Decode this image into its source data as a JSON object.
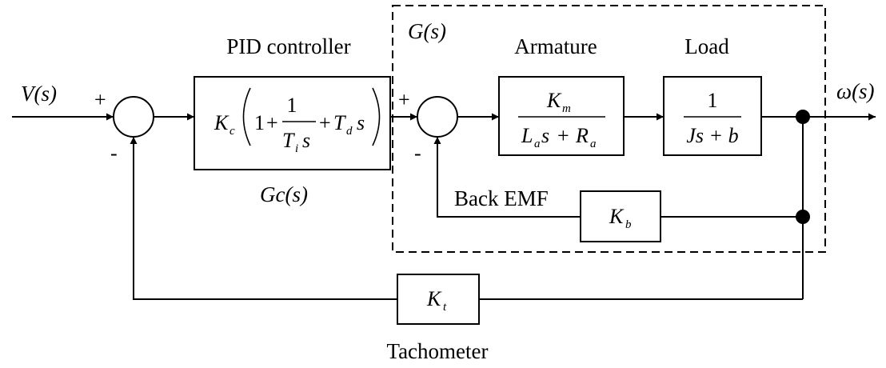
{
  "labels": {
    "pid_controller": "PID controller",
    "g_s": "G(s)",
    "armature": "Armature",
    "load": "Load",
    "v_s": "V(s)",
    "omega_s": "ω(s)",
    "gc_s": "Gc(s)",
    "back_emf": "Back EMF",
    "tachometer": "Tachometer"
  },
  "signs": {
    "sum1_plus": "+",
    "sum1_minus": "-",
    "sum2_plus": "+",
    "sum2_minus": "-"
  },
  "blocks": {
    "pid": {
      "Kc": "K",
      "Kc_sub": "c",
      "one": "1",
      "plus": "+",
      "frac_num": "1",
      "Ti": "T",
      "Ti_sub": "i",
      "Ti_s": "s",
      "Td": "T",
      "Td_sub": "d",
      "Td_s": "s"
    },
    "armature": {
      "num": "K",
      "num_sub": "m",
      "La": "L",
      "La_sub": "a",
      "s": "s",
      "plus": "+",
      "Ra": "R",
      "Ra_sub": "a"
    },
    "load": {
      "num": "1",
      "den": "Js + b"
    },
    "back_emf": {
      "K": "K",
      "sub": "b"
    },
    "tacho": {
      "K": "K",
      "sub": "t"
    }
  }
}
